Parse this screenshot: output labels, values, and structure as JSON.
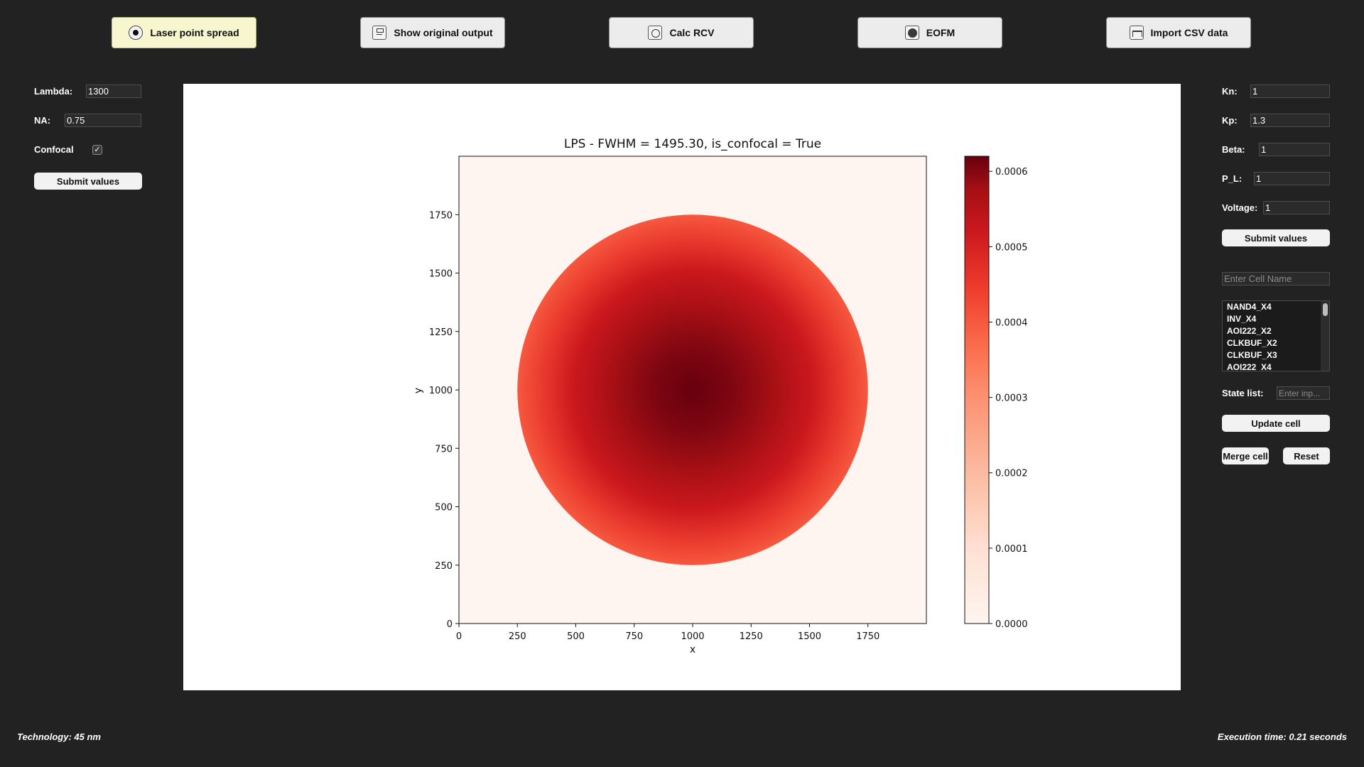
{
  "toolbar": {
    "buttons": [
      {
        "label": "Laser point spread",
        "icon": "radio-icon",
        "active": true
      },
      {
        "label": "Show original output",
        "icon": "document-icon",
        "active": false
      },
      {
        "label": "Calc RCV",
        "icon": "clock-icon",
        "active": false
      },
      {
        "label": "EOFM",
        "icon": "disc-icon",
        "active": false
      },
      {
        "label": "Import CSV data",
        "icon": "waveform-icon",
        "active": false
      }
    ]
  },
  "left_panel": {
    "lambda_label": "Lambda:",
    "lambda_value": "1300",
    "na_label": "NA:",
    "na_value": "0.75",
    "confocal_label": "Confocal",
    "confocal_check": "✓",
    "submit_label": "Submit values"
  },
  "right_panel": {
    "kn_label": "Kn:",
    "kn_value": "1",
    "kp_label": "Kp:",
    "kp_value": "1.3",
    "beta_label": "Beta:",
    "beta_value": "1",
    "pl_label": "P_L:",
    "pl_value": "1",
    "voltage_label": "Voltage:",
    "voltage_value": "1",
    "submit_label": "Submit values",
    "cell_name_placeholder": "Enter Cell Name",
    "cells": [
      "NAND4_X4",
      "INV_X4",
      "AOI222_X2",
      "CLKBUF_X2",
      "CLKBUF_X3",
      "AOI222_X4"
    ],
    "state_list_label": "State list:",
    "state_list_placeholder": "Enter inp...",
    "update_label": "Update cell",
    "merge_label": "Merge cell",
    "reset_label": "Reset"
  },
  "footer": {
    "technology": "Technology: 45 nm",
    "execution_time": "Execution time: 0.21 seconds"
  },
  "chart_data": {
    "type": "heatmap",
    "title": "LPS - FWHM = 1495.30, is_confocal = True",
    "xlabel": "x",
    "ylabel": "y",
    "xlim": [
      0,
      2000
    ],
    "ylim": [
      0,
      2000
    ],
    "xticks": [
      0,
      250,
      500,
      750,
      1000,
      1250,
      1500,
      1750
    ],
    "yticks": [
      0,
      250,
      500,
      750,
      1000,
      1250,
      1500,
      1750
    ],
    "colormap": "Reds",
    "center": [
      1000,
      1000
    ],
    "radius": 750,
    "max_value": 0.00062,
    "edge_value": 0.00029,
    "background_value": 0.0,
    "colorbar": {
      "range": [
        0,
        0.00062
      ],
      "ticks": [
        0.0,
        0.0001,
        0.0002,
        0.0003,
        0.0004,
        0.0005,
        0.0006
      ],
      "tick_labels": [
        "0.0000",
        "0.0001",
        "0.0002",
        "0.0003",
        "0.0004",
        "0.0005",
        "0.0006"
      ]
    }
  }
}
